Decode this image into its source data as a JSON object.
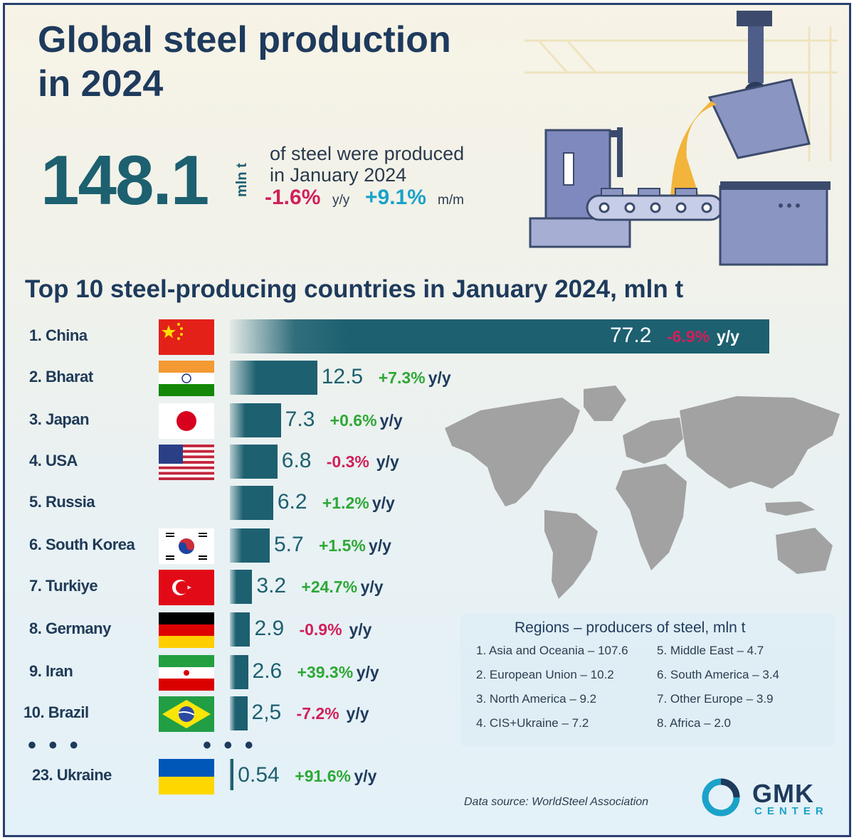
{
  "title_line1": "Global steel production",
  "title_line2": "in 2024",
  "summary": {
    "total": "148.1",
    "unit": "mln t",
    "line1": "of steel were produced",
    "line2": "in January 2024",
    "yy_change": "-1.6%",
    "yy_unit": "y/y",
    "mm_change": "+9.1%",
    "mm_unit": "m/m"
  },
  "colors": {
    "bar": "#1d6070",
    "positive": "#2ea836",
    "negative": "#d21f5a",
    "accent": "#1aa2c9",
    "text_dark": "#1e3a5c"
  },
  "chart_data": {
    "type": "bar",
    "title": "Top 10 steel-producing countries in January 2024, mln t",
    "categories": [
      "1. China",
      "2. Bharat",
      "3. Japan",
      "4. USA",
      "5. Russia",
      "6. South Korea",
      "7. Turkiye",
      "8. Germany",
      "9. Iran",
      "10. Brazil",
      "23. Ukraine"
    ],
    "values": [
      77.2,
      12.5,
      7.3,
      6.8,
      6.2,
      5.7,
      3.2,
      2.9,
      2.6,
      2.5,
      0.54
    ],
    "value_labels": [
      "77.2",
      "12.5",
      "7.3",
      "6.8",
      "6.2",
      "5.7",
      "3.2",
      "2.9",
      "2.6",
      "2,5",
      "0.54"
    ],
    "changes": [
      "-6.9%",
      "+7.3%",
      "+0.6%",
      "-0.3%",
      "+1.2%",
      "+1.5%",
      "+24.7%",
      "-0.9%",
      "+39.3%",
      "-7.2%",
      "+91.6%"
    ],
    "change_unit": "y/y",
    "flags": [
      "china-flag",
      "india-flag",
      "japan-flag",
      "usa-flag",
      "",
      "south-korea-flag",
      "turkey-flag",
      "germany-flag",
      "iran-flag",
      "brazil-flag",
      "ukraine-flag"
    ],
    "xlim": [
      0,
      77.2
    ]
  },
  "ellipsis": "• • •",
  "regions": {
    "title": "Regions  – producers of steel, mln t",
    "items": [
      "1. Asia and Oceania – 107.6",
      "2. European Union – 10.2",
      "3. North America – 9.2",
      "4. CIS+Ukraine – 7.2",
      "5. Middle East – 4.7",
      "6. South America – 3.4",
      "7. Other Europe – 3.9",
      "8. Africa – 2.0"
    ]
  },
  "source": "Data source: WorldSteel Association",
  "logo": {
    "name": "GMK",
    "sub": "CENTER"
  }
}
